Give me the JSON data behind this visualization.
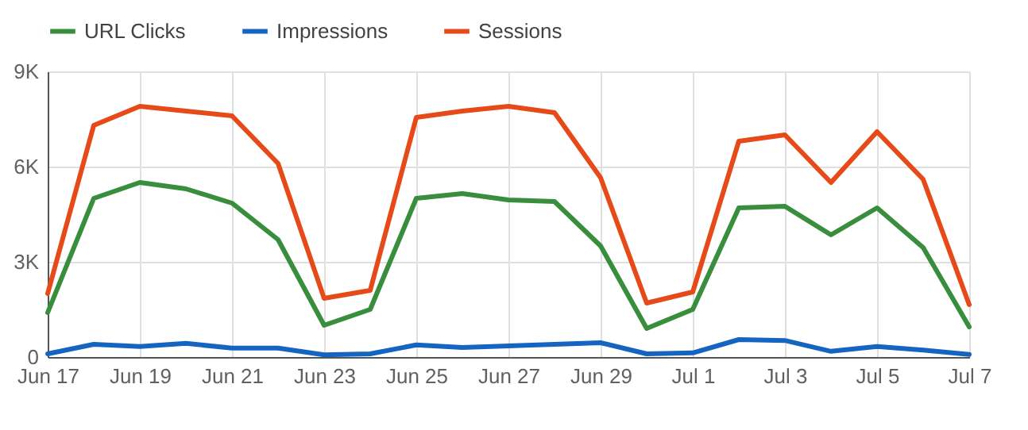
{
  "chart_data": {
    "type": "line",
    "x": [
      "--06-17",
      "--06-18",
      "--06-19",
      "--06-20",
      "--06-21",
      "--06-22",
      "--06-23",
      "--06-24",
      "--06-25",
      "--06-26",
      "--06-27",
      "--06-28",
      "--06-29",
      "--06-30",
      "--07-01",
      "--07-02",
      "--07-03",
      "--07-04",
      "--07-05",
      "--07-06",
      "--07-07"
    ],
    "series": [
      {
        "name": "URL Clicks",
        "color": "#388e3c",
        "values": [
          1400,
          5000,
          5500,
          5300,
          4850,
          3700,
          1000,
          1500,
          5000,
          5150,
          4950,
          4900,
          3500,
          900,
          1500,
          4700,
          4750,
          3850,
          4700,
          3450,
          950
        ]
      },
      {
        "name": "Impressions",
        "color": "#1565c0",
        "values": [
          100,
          400,
          330,
          430,
          280,
          280,
          70,
          100,
          380,
          300,
          350,
          400,
          450,
          100,
          130,
          550,
          520,
          180,
          330,
          220,
          80
        ]
      },
      {
        "name": "Sessions",
        "color": "#e64a19",
        "values": [
          2000,
          7300,
          7900,
          7750,
          7600,
          6100,
          1850,
          2100,
          7550,
          7750,
          7900,
          7700,
          5650,
          1700,
          2050,
          6800,
          7000,
          5500,
          7100,
          5600,
          1650
        ]
      }
    ],
    "xlim": [
      "--06-17",
      "--07-07"
    ],
    "xticks": [
      {
        "value": "--06-17",
        "label": "Jun 17"
      },
      {
        "value": "--06-19",
        "label": "Jun 19"
      },
      {
        "value": "--06-21",
        "label": "Jun 21"
      },
      {
        "value": "--06-23",
        "label": "Jun 23"
      },
      {
        "value": "--06-25",
        "label": "Jun 25"
      },
      {
        "value": "--06-27",
        "label": "Jun 27"
      },
      {
        "value": "--06-29",
        "label": "Jun 29"
      },
      {
        "value": "--07-01",
        "label": "Jul 1"
      },
      {
        "value": "--07-03",
        "label": "Jul 3"
      },
      {
        "value": "--07-05",
        "label": "Jul 5"
      },
      {
        "value": "--07-07",
        "label": "Jul 7"
      }
    ],
    "ylim": [
      0,
      9000
    ],
    "yticks": [
      0,
      {
        "value": 3000,
        "label": "3K"
      },
      {
        "value": 6000,
        "label": "6K"
      },
      {
        "value": 9000,
        "label": "9K"
      }
    ],
    "grid": true,
    "legend": "top left",
    "marker": "none",
    "line_style": "solid"
  }
}
